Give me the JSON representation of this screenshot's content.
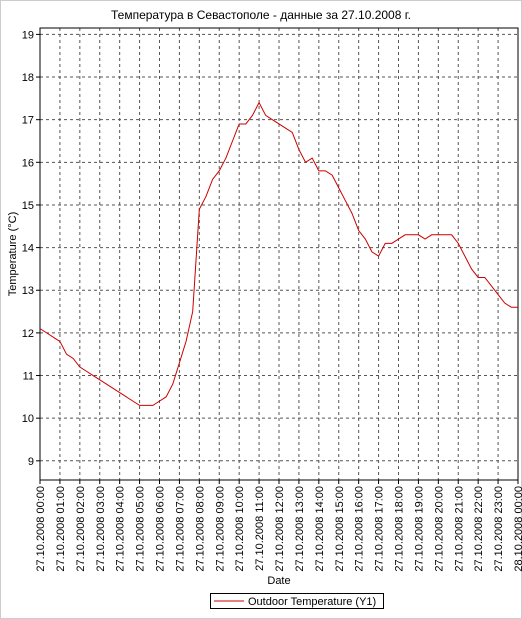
{
  "chart_data": {
    "type": "line",
    "title": "Температура в Севастополе - данные за 27.10.2008 г.",
    "x_label": "Date",
    "y_label": "Temperature (°C)",
    "xlim": [
      "27.10.2008 00:00",
      "28.10.2008 00:00"
    ],
    "xticks": [
      "27.10.2008 00:00",
      "27.10.2008 01:00",
      "27.10.2008 02:00",
      "27.10.2008 03:00",
      "27.10.2008 04:00",
      "27.10.2008 05:00",
      "27.10.2008 06:00",
      "27.10.2008 07:00",
      "27.10.2008 08:00",
      "27.10.2008 09:00",
      "27.10.2008 10:00",
      "27.10.2008 11:00",
      "27.10.2008 12:00",
      "27.10.2008 13:00",
      "27.10.2008 14:00",
      "27.10.2008 15:00",
      "27.10.2008 16:00",
      "27.10.2008 17:00",
      "27.10.2008 18:00",
      "27.10.2008 19:00",
      "27.10.2008 20:00",
      "27.10.2008 21:00",
      "27.10.2008 22:00",
      "27.10.2008 23:00",
      "28.10.2008 00:00"
    ],
    "ylim": [
      8.55,
      19.15
    ],
    "yticks": [
      9,
      10,
      11,
      12,
      13,
      14,
      15,
      16,
      17,
      18,
      19
    ],
    "grid": true,
    "x": [
      "27.10.2008 00:00",
      "27.10.2008 00:20",
      "27.10.2008 00:40",
      "27.10.2008 01:00",
      "27.10.2008 01:20",
      "27.10.2008 01:40",
      "27.10.2008 02:00",
      "27.10.2008 02:20",
      "27.10.2008 02:40",
      "27.10.2008 03:00",
      "27.10.2008 03:20",
      "27.10.2008 03:40",
      "27.10.2008 04:00",
      "27.10.2008 04:20",
      "27.10.2008 04:40",
      "27.10.2008 05:00",
      "27.10.2008 05:20",
      "27.10.2008 05:40",
      "27.10.2008 06:00",
      "27.10.2008 06:20",
      "27.10.2008 06:40",
      "27.10.2008 07:00",
      "27.10.2008 07:20",
      "27.10.2008 07:40",
      "27.10.2008 08:00",
      "27.10.2008 08:20",
      "27.10.2008 08:40",
      "27.10.2008 09:00",
      "27.10.2008 09:20",
      "27.10.2008 09:40",
      "27.10.2008 10:00",
      "27.10.2008 10:20",
      "27.10.2008 10:40",
      "27.10.2008 11:00",
      "27.10.2008 11:20",
      "27.10.2008 11:40",
      "27.10.2008 12:00",
      "27.10.2008 12:20",
      "27.10.2008 12:40",
      "27.10.2008 13:00",
      "27.10.2008 13:20",
      "27.10.2008 13:40",
      "27.10.2008 14:00",
      "27.10.2008 14:20",
      "27.10.2008 14:40",
      "27.10.2008 15:00",
      "27.10.2008 15:20",
      "27.10.2008 15:40",
      "27.10.2008 16:00",
      "27.10.2008 16:20",
      "27.10.2008 16:40",
      "27.10.2008 17:00",
      "27.10.2008 17:20",
      "27.10.2008 17:40",
      "27.10.2008 18:00",
      "27.10.2008 18:20",
      "27.10.2008 18:40",
      "27.10.2008 19:00",
      "27.10.2008 19:20",
      "27.10.2008 19:40",
      "27.10.2008 20:00",
      "27.10.2008 20:20",
      "27.10.2008 20:40",
      "27.10.2008 21:00",
      "27.10.2008 21:20",
      "27.10.2008 21:40",
      "27.10.2008 22:00",
      "27.10.2008 22:20",
      "27.10.2008 22:40",
      "27.10.2008 23:00",
      "27.10.2008 23:20",
      "27.10.2008 23:40",
      "28.10.2008 00:00"
    ],
    "series": [
      {
        "name": "Outdoor Temperature (Y1)",
        "color": "#cc0000",
        "values": [
          12.1,
          12.0,
          11.9,
          11.8,
          11.5,
          11.4,
          11.2,
          11.1,
          11.0,
          10.9,
          10.8,
          10.7,
          10.6,
          10.5,
          10.4,
          10.3,
          10.3,
          10.3,
          10.4,
          10.5,
          10.8,
          11.3,
          11.8,
          12.5,
          14.9,
          15.2,
          15.6,
          15.8,
          16.1,
          16.5,
          16.9,
          16.9,
          17.1,
          17.4,
          17.1,
          17.0,
          16.9,
          16.8,
          16.7,
          16.3,
          16.0,
          16.1,
          15.8,
          15.8,
          15.7,
          15.4,
          15.1,
          14.8,
          14.4,
          14.2,
          13.9,
          13.8,
          14.1,
          14.1,
          14.2,
          14.3,
          14.3,
          14.3,
          14.2,
          14.3,
          14.3,
          14.3,
          14.3,
          14.1,
          13.8,
          13.5,
          13.3,
          13.3,
          13.1,
          12.9,
          12.7,
          12.6,
          12.6
        ]
      }
    ]
  }
}
